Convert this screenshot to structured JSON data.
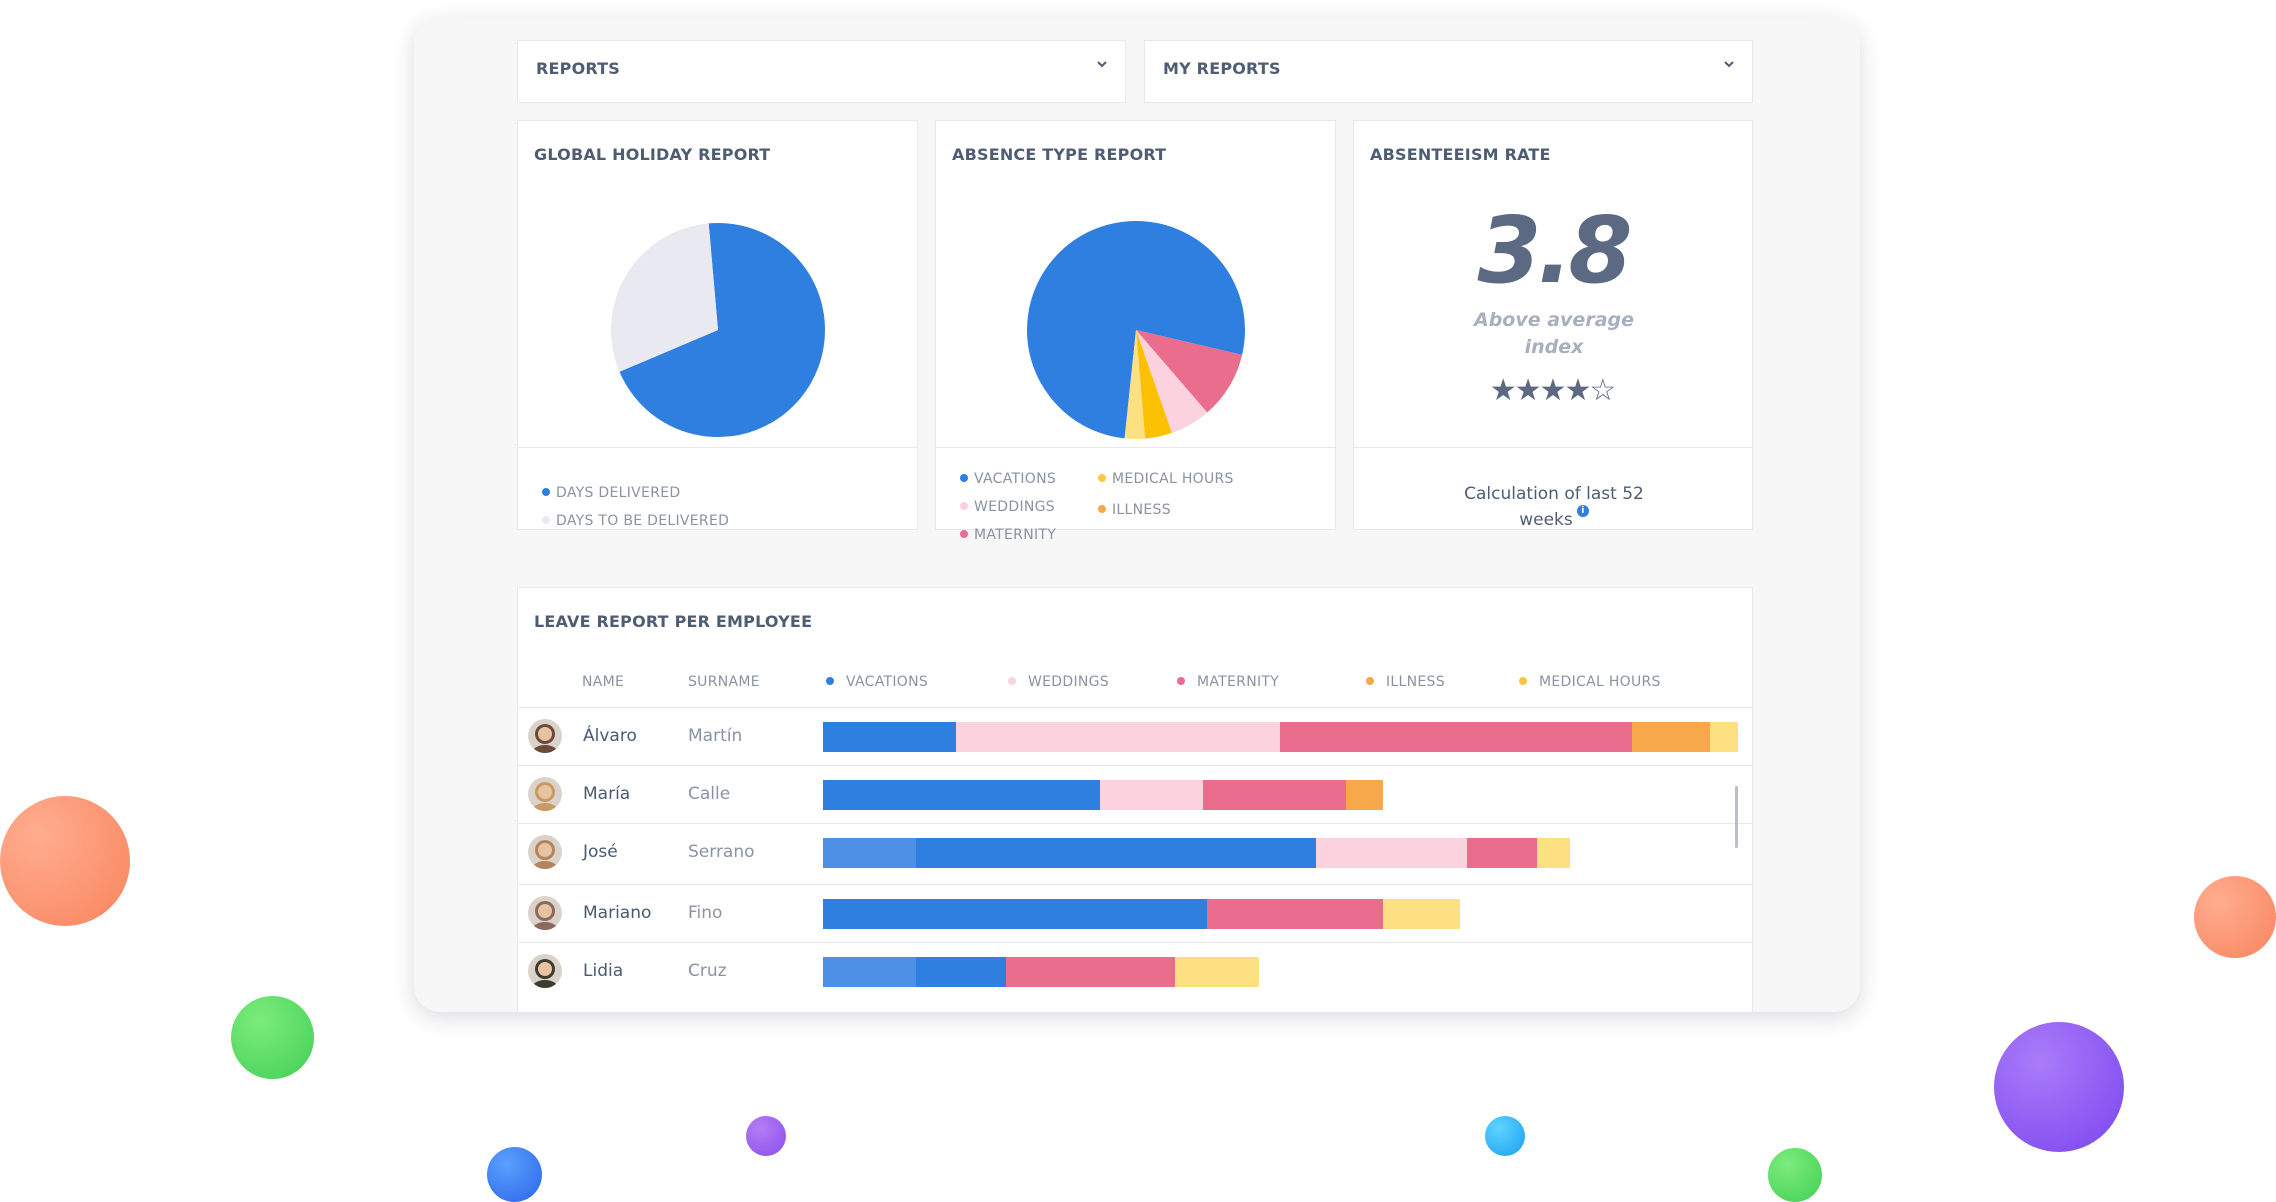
{
  "colors": {
    "vacations": "#2f7fe0",
    "vacations_light": "#4d90e6",
    "weddings": "#fbd2dd",
    "maternity": "#eb6d8d",
    "illness": "#f6a84a",
    "medical_hours": "#fde081",
    "days_delivered": "#2f7fe0",
    "days_to_be_delivered": "#e9e9f2"
  },
  "selects": {
    "reports": {
      "label": "REPORTS",
      "icon": "chevron-down-icon"
    },
    "my_reports": {
      "label": "MY REPORTS",
      "icon": "chevron-down-icon"
    }
  },
  "global_holiday": {
    "title": "GLOBAL HOLIDAY REPORT",
    "legend": [
      "DAYS DELIVERED",
      "DAYS TO BE DELIVERED"
    ]
  },
  "absence_type": {
    "title": "ABSENCE TYPE REPORT",
    "legend": [
      "VACATIONS",
      "WEDDINGS",
      "MATERNITY",
      "MEDICAL HOURS",
      "ILLNESS"
    ]
  },
  "absenteeism": {
    "title": "ABSENTEEISM RATE",
    "value": "3.8",
    "subtitle": "Above average index",
    "rating": 4,
    "rating_max": 5,
    "footnote": "Calculation of last 52 weeks",
    "info_icon": "info-icon"
  },
  "leave_report": {
    "title": "LEAVE REPORT PER EMPLOYEE",
    "columns": [
      "NAME",
      "SURNAME",
      "VACATIONS",
      "WEDDINGS",
      "MATERNITY",
      "ILLNESS",
      "MEDICAL HOURS"
    ],
    "rows": [
      {
        "name": "Álvaro",
        "surname": "Martín",
        "avatar_color": "#6b4a38"
      },
      {
        "name": "María",
        "surname": "Calle",
        "avatar_color": "#c99a64"
      },
      {
        "name": "José",
        "surname": "Serrano",
        "avatar_color": "#b5845c"
      },
      {
        "name": "Mariano",
        "surname": "Fino",
        "avatar_color": "#8a6a5c"
      },
      {
        "name": "Lidia",
        "surname": "Cruz",
        "avatar_color": "#3e3b30"
      }
    ]
  },
  "chart_data": [
    {
      "type": "pie",
      "title": "GLOBAL HOLIDAY REPORT",
      "categories": [
        "DAYS DELIVERED",
        "DAYS TO BE DELIVERED"
      ],
      "values": [
        70,
        30
      ]
    },
    {
      "type": "pie",
      "title": "ABSENCE TYPE REPORT",
      "categories": [
        "VACATIONS",
        "MATERNITY",
        "WEDDINGS",
        "MEDICAL HOURS",
        "ILLNESS"
      ],
      "values": [
        77,
        10,
        6,
        4,
        3
      ]
    },
    {
      "type": "bar",
      "title": "LEAVE REPORT PER EMPLOYEE",
      "orientation": "horizontal-stacked",
      "categories": [
        "Álvaro",
        "María",
        "José",
        "Mariano",
        "Lidia"
      ],
      "series": [
        {
          "name": "VACATIONS",
          "values": [
            133,
            277,
            493,
            384,
            183
          ]
        },
        {
          "name": "WEDDINGS",
          "values": [
            324,
            103,
            151,
            0,
            0
          ]
        },
        {
          "name": "MATERNITY",
          "values": [
            352,
            143,
            70,
            176,
            169
          ]
        },
        {
          "name": "ILLNESS",
          "values": [
            78,
            37,
            0,
            0,
            0
          ]
        },
        {
          "name": "MEDICAL HOURS",
          "values": [
            28,
            0,
            33,
            77,
            84
          ]
        }
      ]
    }
  ]
}
